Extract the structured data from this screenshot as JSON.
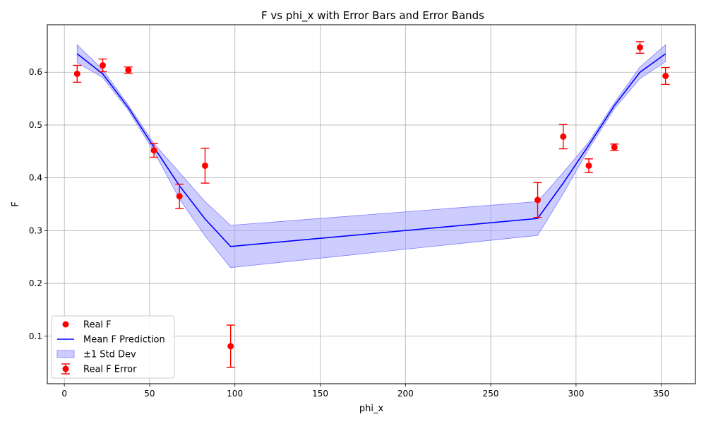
{
  "chart_data": {
    "type": "line",
    "title": "F vs phi_x with Error Bars and Error Bands",
    "xlabel": "phi_x",
    "ylabel": "F",
    "xlim": [
      -10,
      370
    ],
    "ylim": [
      0.01,
      0.69
    ],
    "xticks": [
      "0",
      "50",
      "100",
      "150",
      "200",
      "250",
      "300",
      "350"
    ],
    "yticks": [
      "0.1",
      "0.2",
      "0.3",
      "0.4",
      "0.5",
      "0.6"
    ],
    "grid": true,
    "legend_position": "bottom-left",
    "colors": {
      "real": "#ff0000",
      "mean": "#0000ff",
      "band": "#9999ff"
    },
    "series": [
      {
        "name": "Real F",
        "kind": "scatter",
        "x": [
          7.5,
          22.5,
          37.5,
          52.5,
          67.5,
          82.5,
          97.5,
          277.5,
          292.5,
          307.5,
          322.5,
          337.5,
          352.5
        ],
        "y": [
          0.597,
          0.613,
          0.604,
          0.452,
          0.365,
          0.423,
          0.081,
          0.358,
          0.478,
          0.423,
          0.458,
          0.647,
          0.593
        ]
      },
      {
        "name": "Mean F Prediction",
        "kind": "line",
        "x": [
          7.5,
          22.5,
          37.5,
          52.5,
          67.5,
          82.5,
          97.5,
          277.5,
          292.5,
          307.5,
          322.5,
          337.5,
          352.5
        ],
        "y": [
          0.635,
          0.597,
          0.533,
          0.458,
          0.385,
          0.322,
          0.27,
          0.323,
          0.39,
          0.462,
          0.537,
          0.6,
          0.635
        ]
      },
      {
        "name": "±1 Std Dev",
        "kind": "band",
        "x": [
          7.5,
          22.5,
          37.5,
          52.5,
          67.5,
          82.5,
          97.5,
          277.5,
          292.5,
          307.5,
          322.5,
          337.5,
          352.5
        ],
        "lower": [
          0.618,
          0.59,
          0.528,
          0.45,
          0.36,
          0.29,
          0.23,
          0.291,
          0.37,
          0.455,
          0.531,
          0.588,
          0.62
        ],
        "upper": [
          0.652,
          0.605,
          0.538,
          0.465,
          0.41,
          0.355,
          0.31,
          0.355,
          0.41,
          0.468,
          0.542,
          0.61,
          0.652
        ]
      },
      {
        "name": "Real F Error",
        "kind": "errorbar",
        "x": [
          7.5,
          22.5,
          37.5,
          52.5,
          67.5,
          82.5,
          97.5,
          277.5,
          292.5,
          307.5,
          322.5,
          337.5,
          352.5
        ],
        "y": [
          0.597,
          0.613,
          0.604,
          0.452,
          0.365,
          0.423,
          0.081,
          0.358,
          0.478,
          0.423,
          0.458,
          0.647,
          0.593
        ],
        "err": [
          0.016,
          0.012,
          0.006,
          0.013,
          0.023,
          0.033,
          0.04,
          0.033,
          0.023,
          0.013,
          0.006,
          0.011,
          0.016
        ]
      }
    ]
  }
}
